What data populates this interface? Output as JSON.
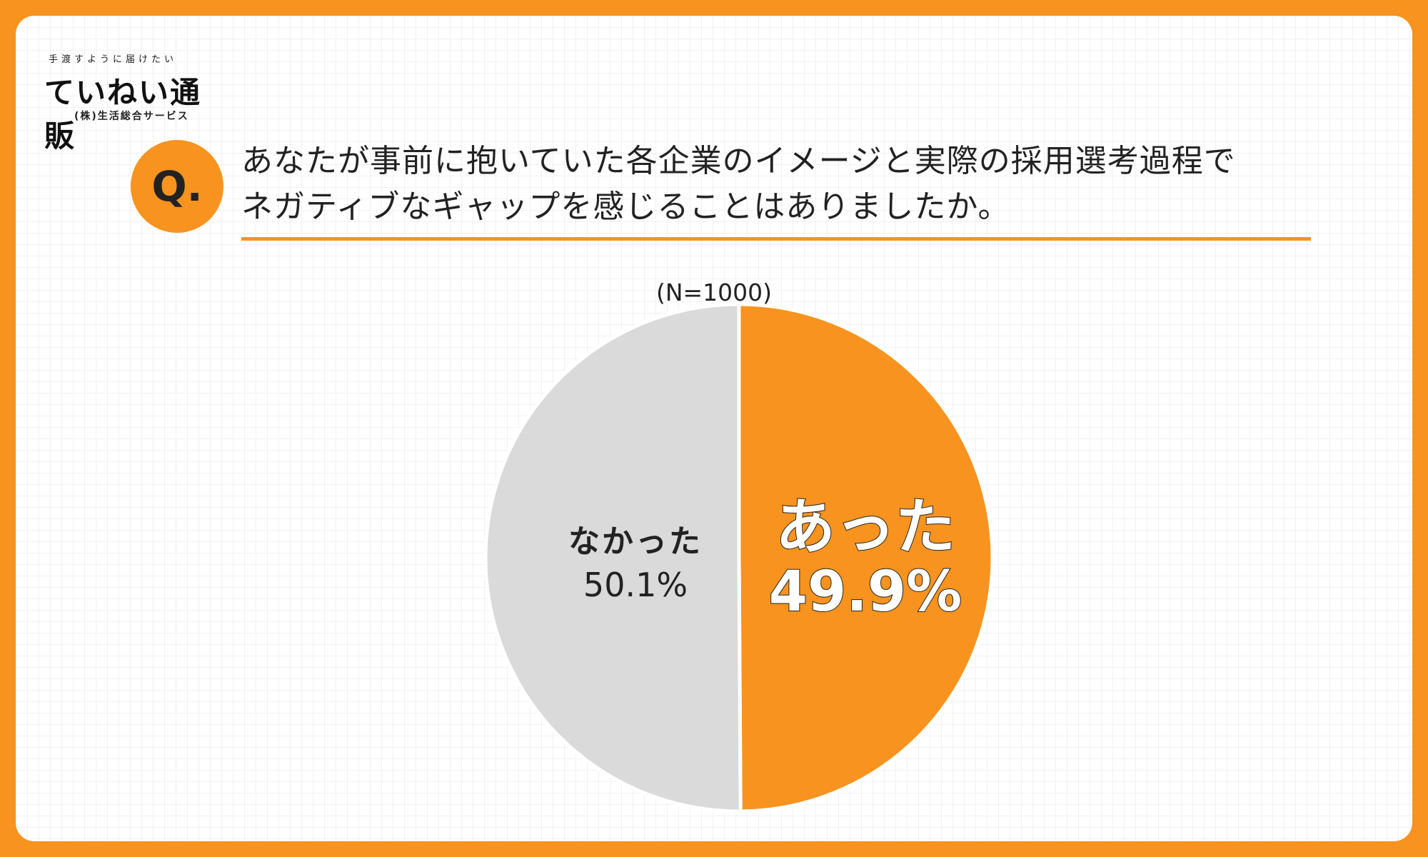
{
  "logo": {
    "tagline": "手渡すように届けたい",
    "brand": "ていねい通販",
    "company": "(株)生活総合サービス"
  },
  "question": {
    "badge": "Q.",
    "line1": "あなたが事前に抱いていた各企業のイメージと実際の採用選考過程で",
    "line2": "ネガティブなギャップを感じることはありましたか。"
  },
  "sample_label": "(N=1000)",
  "chart_data": {
    "type": "pie",
    "categories": [
      "あった",
      "なかった"
    ],
    "values": [
      49.9,
      50.1
    ],
    "value_labels": [
      "49.9%",
      "50.1%"
    ],
    "colors": [
      "#f7931e",
      "#dadada"
    ],
    "start": "top",
    "direction": "clockwise"
  }
}
